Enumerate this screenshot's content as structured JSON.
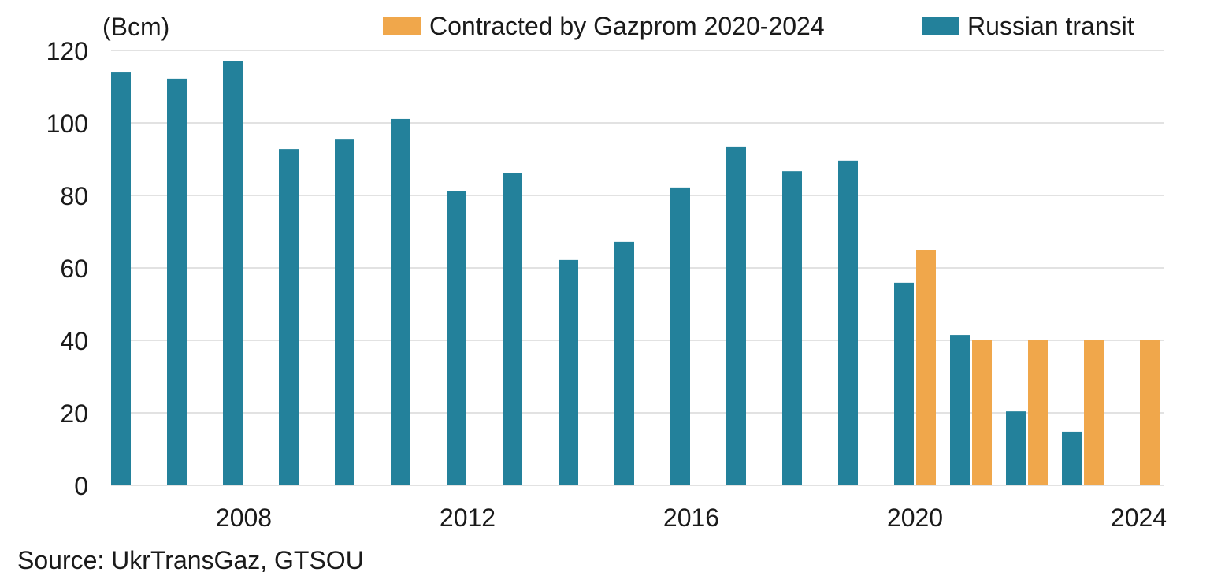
{
  "chart_data": {
    "type": "bar",
    "title": "",
    "unit_label": "(Bcm)",
    "xlabel": "",
    "ylabel": "(Bcm)",
    "ylim": [
      0,
      120
    ],
    "yticks": [
      0,
      20,
      40,
      60,
      80,
      100,
      120
    ],
    "xtick_labels": [
      "2008",
      "2012",
      "2016",
      "2020",
      "2024"
    ],
    "grid": true,
    "legend_position": "top-right",
    "categories": [
      "2006",
      "2007",
      "2008",
      "2009",
      "2010",
      "2011",
      "2012",
      "2013",
      "2014",
      "2015",
      "2016",
      "2017",
      "2018",
      "2019",
      "2020",
      "2021",
      "2022",
      "2023",
      "2024"
    ],
    "series": [
      {
        "name": "Russian transit",
        "color": "#23819b",
        "values": [
          113.9,
          112.2,
          117.1,
          92.8,
          95.4,
          101.1,
          81.3,
          86.1,
          62.2,
          67.2,
          82.2,
          93.5,
          86.7,
          89.6,
          55.9,
          41.5,
          20.4,
          14.8,
          null
        ]
      },
      {
        "name": "Contracted by Gazprom 2020-2024",
        "color": "#f0a74b",
        "values": [
          null,
          null,
          null,
          null,
          null,
          null,
          null,
          null,
          null,
          null,
          null,
          null,
          null,
          null,
          65,
          40,
          40,
          40,
          40
        ]
      }
    ],
    "source": "Source: UkrTransGaz, GTSOU"
  },
  "legend": {
    "items": [
      {
        "label": "Contracted by Gazprom 2020-2024",
        "color": "#f0a74b"
      },
      {
        "label": "Russian transit",
        "color": "#23819b"
      }
    ]
  },
  "source_note": "Source: UkrTransGaz, GTSOU"
}
